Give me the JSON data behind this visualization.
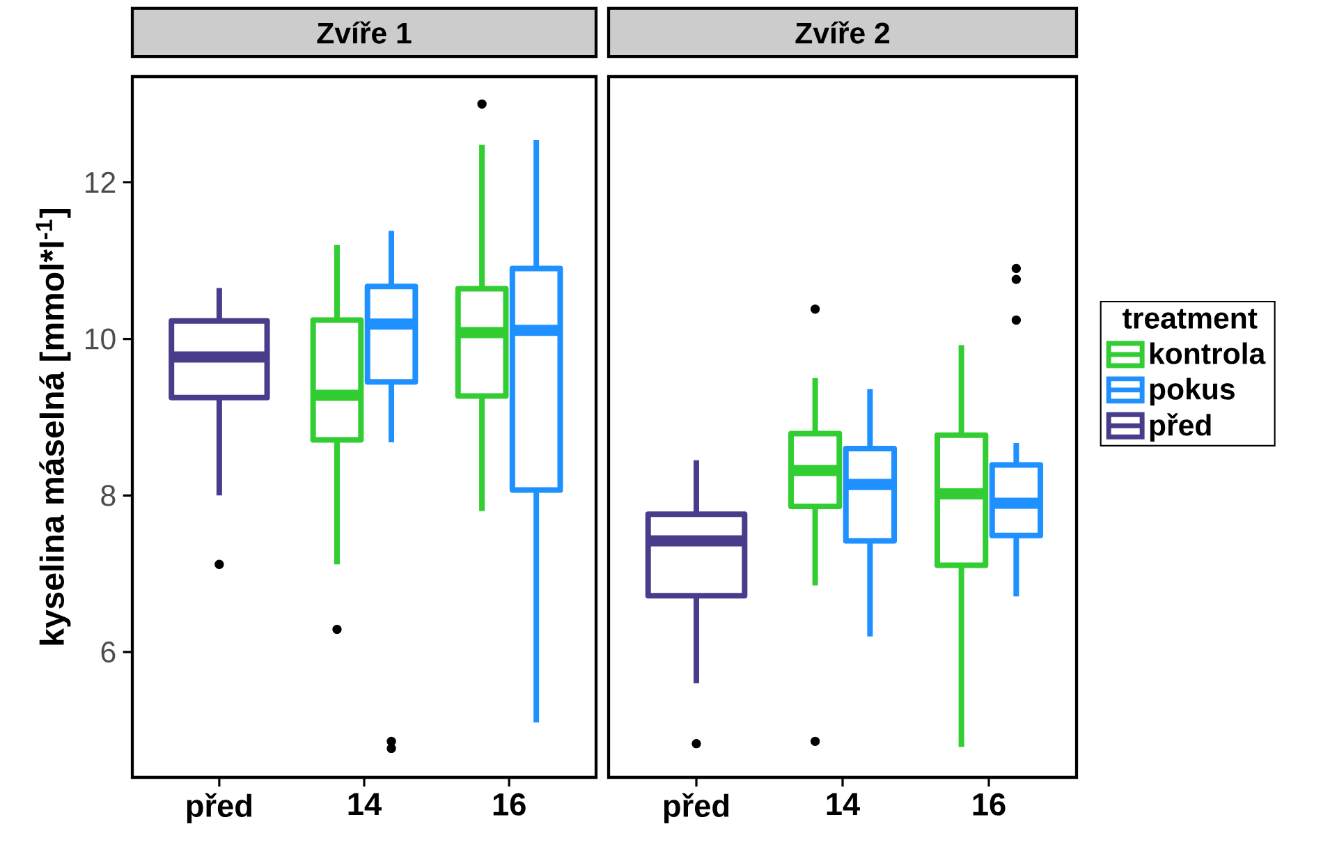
{
  "chart_data": [
    {
      "type": "box",
      "title": "Zvíře 1",
      "ylabel": "kyselina máselná [mmol*l$^{-1}$]",
      "categories": [
        "před",
        "14",
        "16"
      ],
      "ylim": [
        4.4,
        13.35
      ],
      "yticks": [
        6,
        8,
        10,
        12
      ],
      "series": [
        {
          "color": "#32cd32",
          "boxes": [
            null,
            {
              "low": 7.12,
              "q1": 8.71,
              "median": 9.28,
              "q3": 10.24,
              "high": 11.2,
              "outliers": [
                6.29
              ]
            },
            {
              "low": 7.8,
              "q1": 9.27,
              "median": 10.08,
              "q3": 10.64,
              "high": 12.48,
              "outliers": [
                13.0
              ]
            }
          ]
        },
        {
          "color": "#1e90ff",
          "boxes": [
            null,
            {
              "low": 8.68,
              "q1": 9.45,
              "median": 10.19,
              "q3": 10.67,
              "high": 11.38,
              "outliers": [
                4.86,
                4.77
              ]
            },
            {
              "low": 5.1,
              "q1": 8.07,
              "median": 10.11,
              "q3": 10.9,
              "high": 12.54
            }
          ]
        },
        {
          "color": "#483d8b",
          "boxes": [
            {
              "low": 8.0,
              "q1": 9.25,
              "median": 9.77,
              "q3": 10.23,
              "high": 10.65,
              "outliers": [
                7.12
              ]
            },
            null,
            null
          ]
        }
      ]
    },
    {
      "type": "box",
      "title": "Zvíře 2",
      "categories": [
        "před",
        "14",
        "16"
      ],
      "ylim": [
        4.4,
        13.35
      ],
      "tick_labels": "x",
      "legend": "right",
      "legend_title": "treatment",
      "series": [
        {
          "name": "kontrola",
          "color": "#32cd32",
          "boxes": [
            null,
            {
              "low": 6.85,
              "q1": 7.86,
              "median": 8.32,
              "q3": 8.79,
              "high": 9.5,
              "outliers": [
                10.38,
                4.86
              ]
            },
            {
              "low": 4.79,
              "q1": 7.11,
              "median": 8.02,
              "q3": 8.77,
              "high": 9.92
            }
          ]
        },
        {
          "name": "pokus",
          "color": "#1e90ff",
          "boxes": [
            null,
            {
              "low": 6.2,
              "q1": 7.42,
              "median": 8.14,
              "q3": 8.6,
              "high": 9.36
            },
            {
              "low": 6.71,
              "q1": 7.49,
              "median": 7.9,
              "q3": 8.39,
              "high": 8.67,
              "outliers": [
                10.9,
                10.76,
                10.24
              ]
            }
          ]
        },
        {
          "name": "před",
          "color": "#483d8b",
          "boxes": [
            {
              "low": 5.6,
              "q1": 6.72,
              "median": 7.42,
              "q3": 7.76,
              "high": 8.45,
              "outliers": [
                4.83
              ]
            },
            null,
            null
          ]
        }
      ]
    }
  ]
}
